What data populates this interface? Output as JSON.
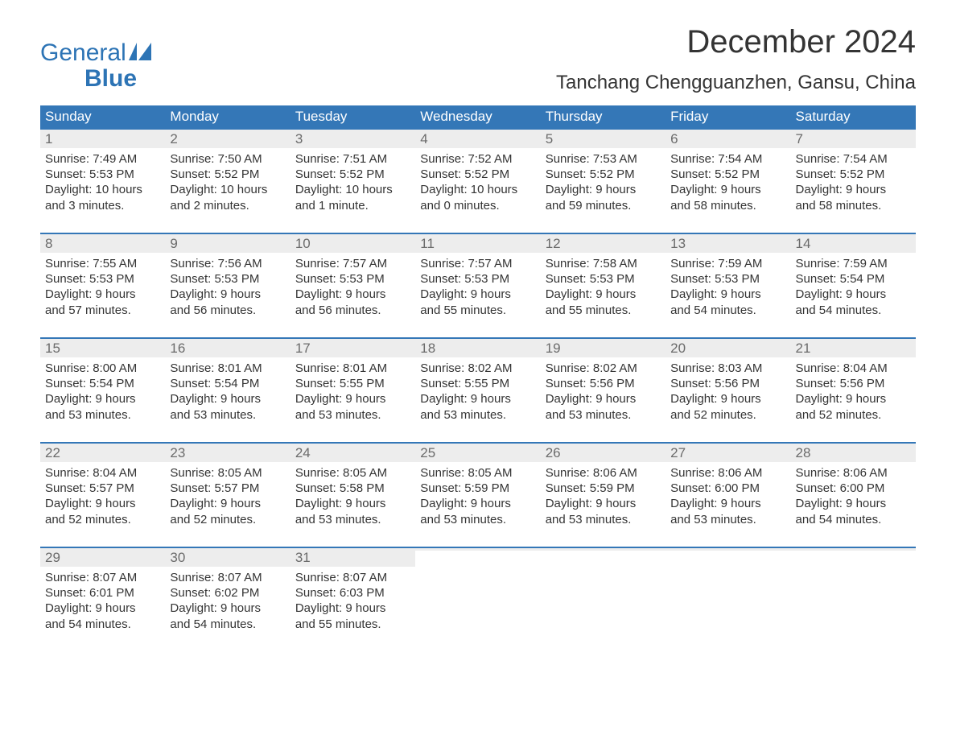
{
  "logo": {
    "line1": "General",
    "line2": "Blue"
  },
  "title": "December 2024",
  "subtitle": "Tanchang Chengguanzhen, Gansu, China",
  "colors": {
    "header_bg": "#3477b7",
    "header_text": "#ffffff",
    "daynum_bg": "#ededed",
    "daynum_text": "#6b6b6b",
    "body_text": "#343434",
    "logo_color": "#2d74b5",
    "page_bg": "#ffffff",
    "row_border": "#3477b7"
  },
  "layout": {
    "columns": 7,
    "rows": 5,
    "font_family": "Arial",
    "day_body_fontsize": 15,
    "daynum_fontsize": 17,
    "header_fontsize": 17,
    "title_fontsize": 40,
    "subtitle_fontsize": 24
  },
  "headers": [
    "Sunday",
    "Monday",
    "Tuesday",
    "Wednesday",
    "Thursday",
    "Friday",
    "Saturday"
  ],
  "weeks": [
    [
      {
        "n": "1",
        "l1": "Sunrise: 7:49 AM",
        "l2": "Sunset: 5:53 PM",
        "l3": "Daylight: 10 hours",
        "l4": "and 3 minutes."
      },
      {
        "n": "2",
        "l1": "Sunrise: 7:50 AM",
        "l2": "Sunset: 5:52 PM",
        "l3": "Daylight: 10 hours",
        "l4": "and 2 minutes."
      },
      {
        "n": "3",
        "l1": "Sunrise: 7:51 AM",
        "l2": "Sunset: 5:52 PM",
        "l3": "Daylight: 10 hours",
        "l4": "and 1 minute."
      },
      {
        "n": "4",
        "l1": "Sunrise: 7:52 AM",
        "l2": "Sunset: 5:52 PM",
        "l3": "Daylight: 10 hours",
        "l4": "and 0 minutes."
      },
      {
        "n": "5",
        "l1": "Sunrise: 7:53 AM",
        "l2": "Sunset: 5:52 PM",
        "l3": "Daylight: 9 hours",
        "l4": "and 59 minutes."
      },
      {
        "n": "6",
        "l1": "Sunrise: 7:54 AM",
        "l2": "Sunset: 5:52 PM",
        "l3": "Daylight: 9 hours",
        "l4": "and 58 minutes."
      },
      {
        "n": "7",
        "l1": "Sunrise: 7:54 AM",
        "l2": "Sunset: 5:52 PM",
        "l3": "Daylight: 9 hours",
        "l4": "and 58 minutes."
      }
    ],
    [
      {
        "n": "8",
        "l1": "Sunrise: 7:55 AM",
        "l2": "Sunset: 5:53 PM",
        "l3": "Daylight: 9 hours",
        "l4": "and 57 minutes."
      },
      {
        "n": "9",
        "l1": "Sunrise: 7:56 AM",
        "l2": "Sunset: 5:53 PM",
        "l3": "Daylight: 9 hours",
        "l4": "and 56 minutes."
      },
      {
        "n": "10",
        "l1": "Sunrise: 7:57 AM",
        "l2": "Sunset: 5:53 PM",
        "l3": "Daylight: 9 hours",
        "l4": "and 56 minutes."
      },
      {
        "n": "11",
        "l1": "Sunrise: 7:57 AM",
        "l2": "Sunset: 5:53 PM",
        "l3": "Daylight: 9 hours",
        "l4": "and 55 minutes."
      },
      {
        "n": "12",
        "l1": "Sunrise: 7:58 AM",
        "l2": "Sunset: 5:53 PM",
        "l3": "Daylight: 9 hours",
        "l4": "and 55 minutes."
      },
      {
        "n": "13",
        "l1": "Sunrise: 7:59 AM",
        "l2": "Sunset: 5:53 PM",
        "l3": "Daylight: 9 hours",
        "l4": "and 54 minutes."
      },
      {
        "n": "14",
        "l1": "Sunrise: 7:59 AM",
        "l2": "Sunset: 5:54 PM",
        "l3": "Daylight: 9 hours",
        "l4": "and 54 minutes."
      }
    ],
    [
      {
        "n": "15",
        "l1": "Sunrise: 8:00 AM",
        "l2": "Sunset: 5:54 PM",
        "l3": "Daylight: 9 hours",
        "l4": "and 53 minutes."
      },
      {
        "n": "16",
        "l1": "Sunrise: 8:01 AM",
        "l2": "Sunset: 5:54 PM",
        "l3": "Daylight: 9 hours",
        "l4": "and 53 minutes."
      },
      {
        "n": "17",
        "l1": "Sunrise: 8:01 AM",
        "l2": "Sunset: 5:55 PM",
        "l3": "Daylight: 9 hours",
        "l4": "and 53 minutes."
      },
      {
        "n": "18",
        "l1": "Sunrise: 8:02 AM",
        "l2": "Sunset: 5:55 PM",
        "l3": "Daylight: 9 hours",
        "l4": "and 53 minutes."
      },
      {
        "n": "19",
        "l1": "Sunrise: 8:02 AM",
        "l2": "Sunset: 5:56 PM",
        "l3": "Daylight: 9 hours",
        "l4": "and 53 minutes."
      },
      {
        "n": "20",
        "l1": "Sunrise: 8:03 AM",
        "l2": "Sunset: 5:56 PM",
        "l3": "Daylight: 9 hours",
        "l4": "and 52 minutes."
      },
      {
        "n": "21",
        "l1": "Sunrise: 8:04 AM",
        "l2": "Sunset: 5:56 PM",
        "l3": "Daylight: 9 hours",
        "l4": "and 52 minutes."
      }
    ],
    [
      {
        "n": "22",
        "l1": "Sunrise: 8:04 AM",
        "l2": "Sunset: 5:57 PM",
        "l3": "Daylight: 9 hours",
        "l4": "and 52 minutes."
      },
      {
        "n": "23",
        "l1": "Sunrise: 8:05 AM",
        "l2": "Sunset: 5:57 PM",
        "l3": "Daylight: 9 hours",
        "l4": "and 52 minutes."
      },
      {
        "n": "24",
        "l1": "Sunrise: 8:05 AM",
        "l2": "Sunset: 5:58 PM",
        "l3": "Daylight: 9 hours",
        "l4": "and 53 minutes."
      },
      {
        "n": "25",
        "l1": "Sunrise: 8:05 AM",
        "l2": "Sunset: 5:59 PM",
        "l3": "Daylight: 9 hours",
        "l4": "and 53 minutes."
      },
      {
        "n": "26",
        "l1": "Sunrise: 8:06 AM",
        "l2": "Sunset: 5:59 PM",
        "l3": "Daylight: 9 hours",
        "l4": "and 53 minutes."
      },
      {
        "n": "27",
        "l1": "Sunrise: 8:06 AM",
        "l2": "Sunset: 6:00 PM",
        "l3": "Daylight: 9 hours",
        "l4": "and 53 minutes."
      },
      {
        "n": "28",
        "l1": "Sunrise: 8:06 AM",
        "l2": "Sunset: 6:00 PM",
        "l3": "Daylight: 9 hours",
        "l4": "and 54 minutes."
      }
    ],
    [
      {
        "n": "29",
        "l1": "Sunrise: 8:07 AM",
        "l2": "Sunset: 6:01 PM",
        "l3": "Daylight: 9 hours",
        "l4": "and 54 minutes."
      },
      {
        "n": "30",
        "l1": "Sunrise: 8:07 AM",
        "l2": "Sunset: 6:02 PM",
        "l3": "Daylight: 9 hours",
        "l4": "and 54 minutes."
      },
      {
        "n": "31",
        "l1": "Sunrise: 8:07 AM",
        "l2": "Sunset: 6:03 PM",
        "l3": "Daylight: 9 hours",
        "l4": "and 55 minutes."
      },
      {
        "n": "",
        "l1": "",
        "l2": "",
        "l3": "",
        "l4": ""
      },
      {
        "n": "",
        "l1": "",
        "l2": "",
        "l3": "",
        "l4": ""
      },
      {
        "n": "",
        "l1": "",
        "l2": "",
        "l3": "",
        "l4": ""
      },
      {
        "n": "",
        "l1": "",
        "l2": "",
        "l3": "",
        "l4": ""
      }
    ]
  ]
}
